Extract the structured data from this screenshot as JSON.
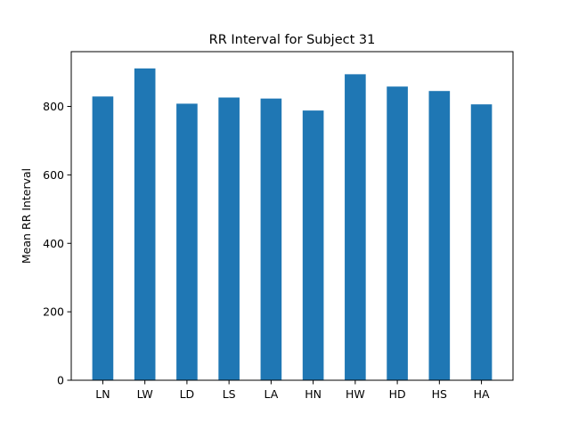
{
  "chart_data": {
    "type": "bar",
    "title": "RR Interval for Subject 31",
    "xlabel": "",
    "ylabel": "Mean RR Interval",
    "categories": [
      "LN",
      "LW",
      "LD",
      "LS",
      "LA",
      "HN",
      "HW",
      "HD",
      "HS",
      "HA"
    ],
    "values": [
      829,
      911,
      808,
      826,
      823,
      788,
      894,
      858,
      845,
      806
    ],
    "ylim": [
      0,
      960
    ],
    "yticks": [
      0,
      200,
      400,
      600,
      800
    ],
    "grid": false,
    "legend": "none",
    "bar_color": "#1f77b4"
  }
}
